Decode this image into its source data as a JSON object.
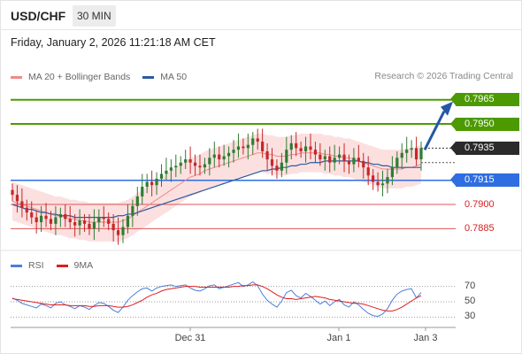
{
  "header": {
    "symbol": "USD/CHF",
    "interval": "30 MIN",
    "timestamp": "Friday, January 2, 2026 11:21:18 AM CET"
  },
  "legend": {
    "items": [
      {
        "label": "MA 20 + Bollinger Bands",
        "color": "#f08a8a"
      },
      {
        "label": "MA 50",
        "color": "#2c5aa0"
      }
    ],
    "copyright": "Research © 2026 Trading Central"
  },
  "rsi_legend": {
    "items": [
      {
        "label": "RSI",
        "color": "#4a7fd9"
      },
      {
        "label": "9MA",
        "color": "#e01e1e"
      }
    ]
  },
  "colors": {
    "resistance": "#4c9a00",
    "support_main": "#2f6de1",
    "support": "#e05555",
    "candle_up": "#2e7d32",
    "candle_down": "#c62828",
    "band_fill": "#fbd6d6",
    "ma20": "#f08a8a",
    "ma50": "#2c5aa0",
    "arrow": "#2457a6"
  },
  "chart_data": [
    {
      "type": "candlestick",
      "title": "",
      "ylim": [
        0.7872,
        0.7972
      ],
      "x_ticks": [
        "Dec 31",
        "Jan 1",
        "Jan 3"
      ],
      "levels": [
        {
          "value": 0.7965,
          "label": "0.7965",
          "kind": "resistance"
        },
        {
          "value": 0.795,
          "label": "0.7950",
          "kind": "resistance"
        },
        {
          "value": 0.7935,
          "label": "0.7935",
          "kind": "last_price"
        },
        {
          "value": 0.7915,
          "label": "0.7915",
          "kind": "pivot"
        },
        {
          "value": 0.79,
          "label": "0.7900",
          "kind": "support"
        },
        {
          "value": 0.7885,
          "label": "0.7885",
          "kind": "support"
        }
      ],
      "close_series": [
        0.7906,
        0.7902,
        0.7898,
        0.7895,
        0.7892,
        0.7889,
        0.7893,
        0.7891,
        0.7888,
        0.7892,
        0.7894,
        0.7891,
        0.7889,
        0.7887,
        0.789,
        0.7888,
        0.7885,
        0.7889,
        0.7892,
        0.7891,
        0.7888,
        0.7884,
        0.7881,
        0.7886,
        0.7893,
        0.7899,
        0.7905,
        0.7911,
        0.7914,
        0.7912,
        0.7916,
        0.7919,
        0.7921,
        0.7923,
        0.7924,
        0.7926,
        0.7928,
        0.7926,
        0.7924,
        0.7923,
        0.7925,
        0.7929,
        0.7931,
        0.7928,
        0.793,
        0.7932,
        0.7934,
        0.7936,
        0.7935,
        0.7937,
        0.7941,
        0.7939,
        0.7933,
        0.7928,
        0.7924,
        0.7921,
        0.7926,
        0.7934,
        0.7938,
        0.7935,
        0.7933,
        0.7936,
        0.7934,
        0.7931,
        0.7928,
        0.793,
        0.7926,
        0.7929,
        0.7931,
        0.7927,
        0.7925,
        0.7929,
        0.7927,
        0.7923,
        0.7918,
        0.7914,
        0.7912,
        0.7913,
        0.7917,
        0.7923,
        0.7929,
        0.7932,
        0.7934,
        0.7935,
        0.7928,
        0.7935
      ],
      "ma20": [
        0.7902,
        0.7901,
        0.79,
        0.7899,
        0.7898,
        0.7897,
        0.7896,
        0.7895,
        0.7894,
        0.7893,
        0.7893,
        0.7892,
        0.7891,
        0.7891,
        0.789,
        0.789,
        0.7889,
        0.7889,
        0.7889,
        0.7889,
        0.7889,
        0.7889,
        0.7889,
        0.789,
        0.7891,
        0.7893,
        0.7895,
        0.7897,
        0.7899,
        0.7901,
        0.7903,
        0.7905,
        0.7907,
        0.7909,
        0.7911,
        0.7913,
        0.7915,
        0.7917,
        0.7918,
        0.7919,
        0.7921,
        0.7922,
        0.7923,
        0.7924,
        0.7925,
        0.7926,
        0.7927,
        0.7928,
        0.7929,
        0.793,
        0.7931,
        0.7932,
        0.7932,
        0.7931,
        0.7931,
        0.793,
        0.793,
        0.793,
        0.7931,
        0.7931,
        0.7932,
        0.7932,
        0.7932,
        0.7932,
        0.7932,
        0.7931,
        0.7931,
        0.793,
        0.793,
        0.7929,
        0.7929,
        0.7928,
        0.7927,
        0.7926,
        0.7925,
        0.7924,
        0.7923,
        0.7922,
        0.7922,
        0.7922,
        0.7922,
        0.7922,
        0.7923,
        0.7923,
        0.7924,
        0.7925
      ],
      "ma50": [
        0.79,
        0.7899,
        0.7898,
        0.7897,
        0.7897,
        0.7896,
        0.7895,
        0.7895,
        0.7894,
        0.7894,
        0.7893,
        0.7893,
        0.7893,
        0.7892,
        0.7892,
        0.7892,
        0.7892,
        0.7892,
        0.7892,
        0.7892,
        0.7892,
        0.7892,
        0.7893,
        0.7893,
        0.7894,
        0.7894,
        0.7895,
        0.7896,
        0.7897,
        0.7898,
        0.7899,
        0.79,
        0.7901,
        0.7902,
        0.7903,
        0.7904,
        0.7905,
        0.7906,
        0.7907,
        0.7908,
        0.7909,
        0.791,
        0.7911,
        0.7912,
        0.7913,
        0.7914,
        0.7915,
        0.7916,
        0.7917,
        0.7918,
        0.7919,
        0.792,
        0.7921,
        0.7921,
        0.7922,
        0.7922,
        0.7923,
        0.7923,
        0.7924,
        0.7924,
        0.7925,
        0.7925,
        0.7926,
        0.7926,
        0.7926,
        0.7927,
        0.7927,
        0.7927,
        0.7927,
        0.7927,
        0.7927,
        0.7927,
        0.7927,
        0.7926,
        0.7926,
        0.7925,
        0.7925,
        0.7924,
        0.7924,
        0.7923,
        0.7923,
        0.7923,
        0.7923,
        0.7923,
        0.7923,
        0.7923
      ],
      "bollinger_width": 0.0012,
      "projection": {
        "from": 0.7935,
        "to": 0.7965
      }
    },
    {
      "type": "line",
      "title": "",
      "ylim": [
        20,
        80
      ],
      "y_ticks": [
        70,
        50,
        30
      ],
      "series": [
        {
          "name": "RSI",
          "values": [
            55,
            52,
            48,
            46,
            44,
            42,
            47,
            45,
            42,
            48,
            50,
            46,
            44,
            41,
            45,
            43,
            40,
            45,
            49,
            48,
            44,
            39,
            36,
            43,
            52,
            58,
            63,
            67,
            68,
            64,
            68,
            70,
            71,
            72,
            70,
            71,
            72,
            68,
            65,
            64,
            67,
            71,
            72,
            67,
            69,
            71,
            73,
            75,
            70,
            72,
            76,
            71,
            60,
            52,
            47,
            43,
            51,
            62,
            65,
            58,
            55,
            61,
            57,
            52,
            47,
            51,
            45,
            50,
            53,
            46,
            43,
            50,
            46,
            40,
            35,
            32,
            31,
            34,
            41,
            52,
            60,
            64,
            66,
            67,
            55,
            62
          ]
        },
        {
          "name": "9MA",
          "values": [
            54,
            53,
            52,
            51,
            50,
            49,
            48,
            47,
            46,
            46,
            46,
            46,
            45,
            45,
            45,
            45,
            44,
            44,
            45,
            45,
            45,
            44,
            43,
            43,
            44,
            46,
            49,
            52,
            56,
            59,
            61,
            64,
            66,
            67,
            68,
            69,
            70,
            70,
            70,
            69,
            69,
            69,
            69,
            69,
            69,
            69,
            70,
            70,
            71,
            71,
            72,
            72,
            70,
            67,
            63,
            59,
            56,
            54,
            54,
            53,
            54,
            55,
            56,
            57,
            56,
            55,
            53,
            52,
            51,
            50,
            49,
            48,
            48,
            47,
            45,
            43,
            41,
            39,
            38,
            38,
            40,
            43,
            47,
            51,
            55,
            58
          ]
        }
      ]
    }
  ]
}
